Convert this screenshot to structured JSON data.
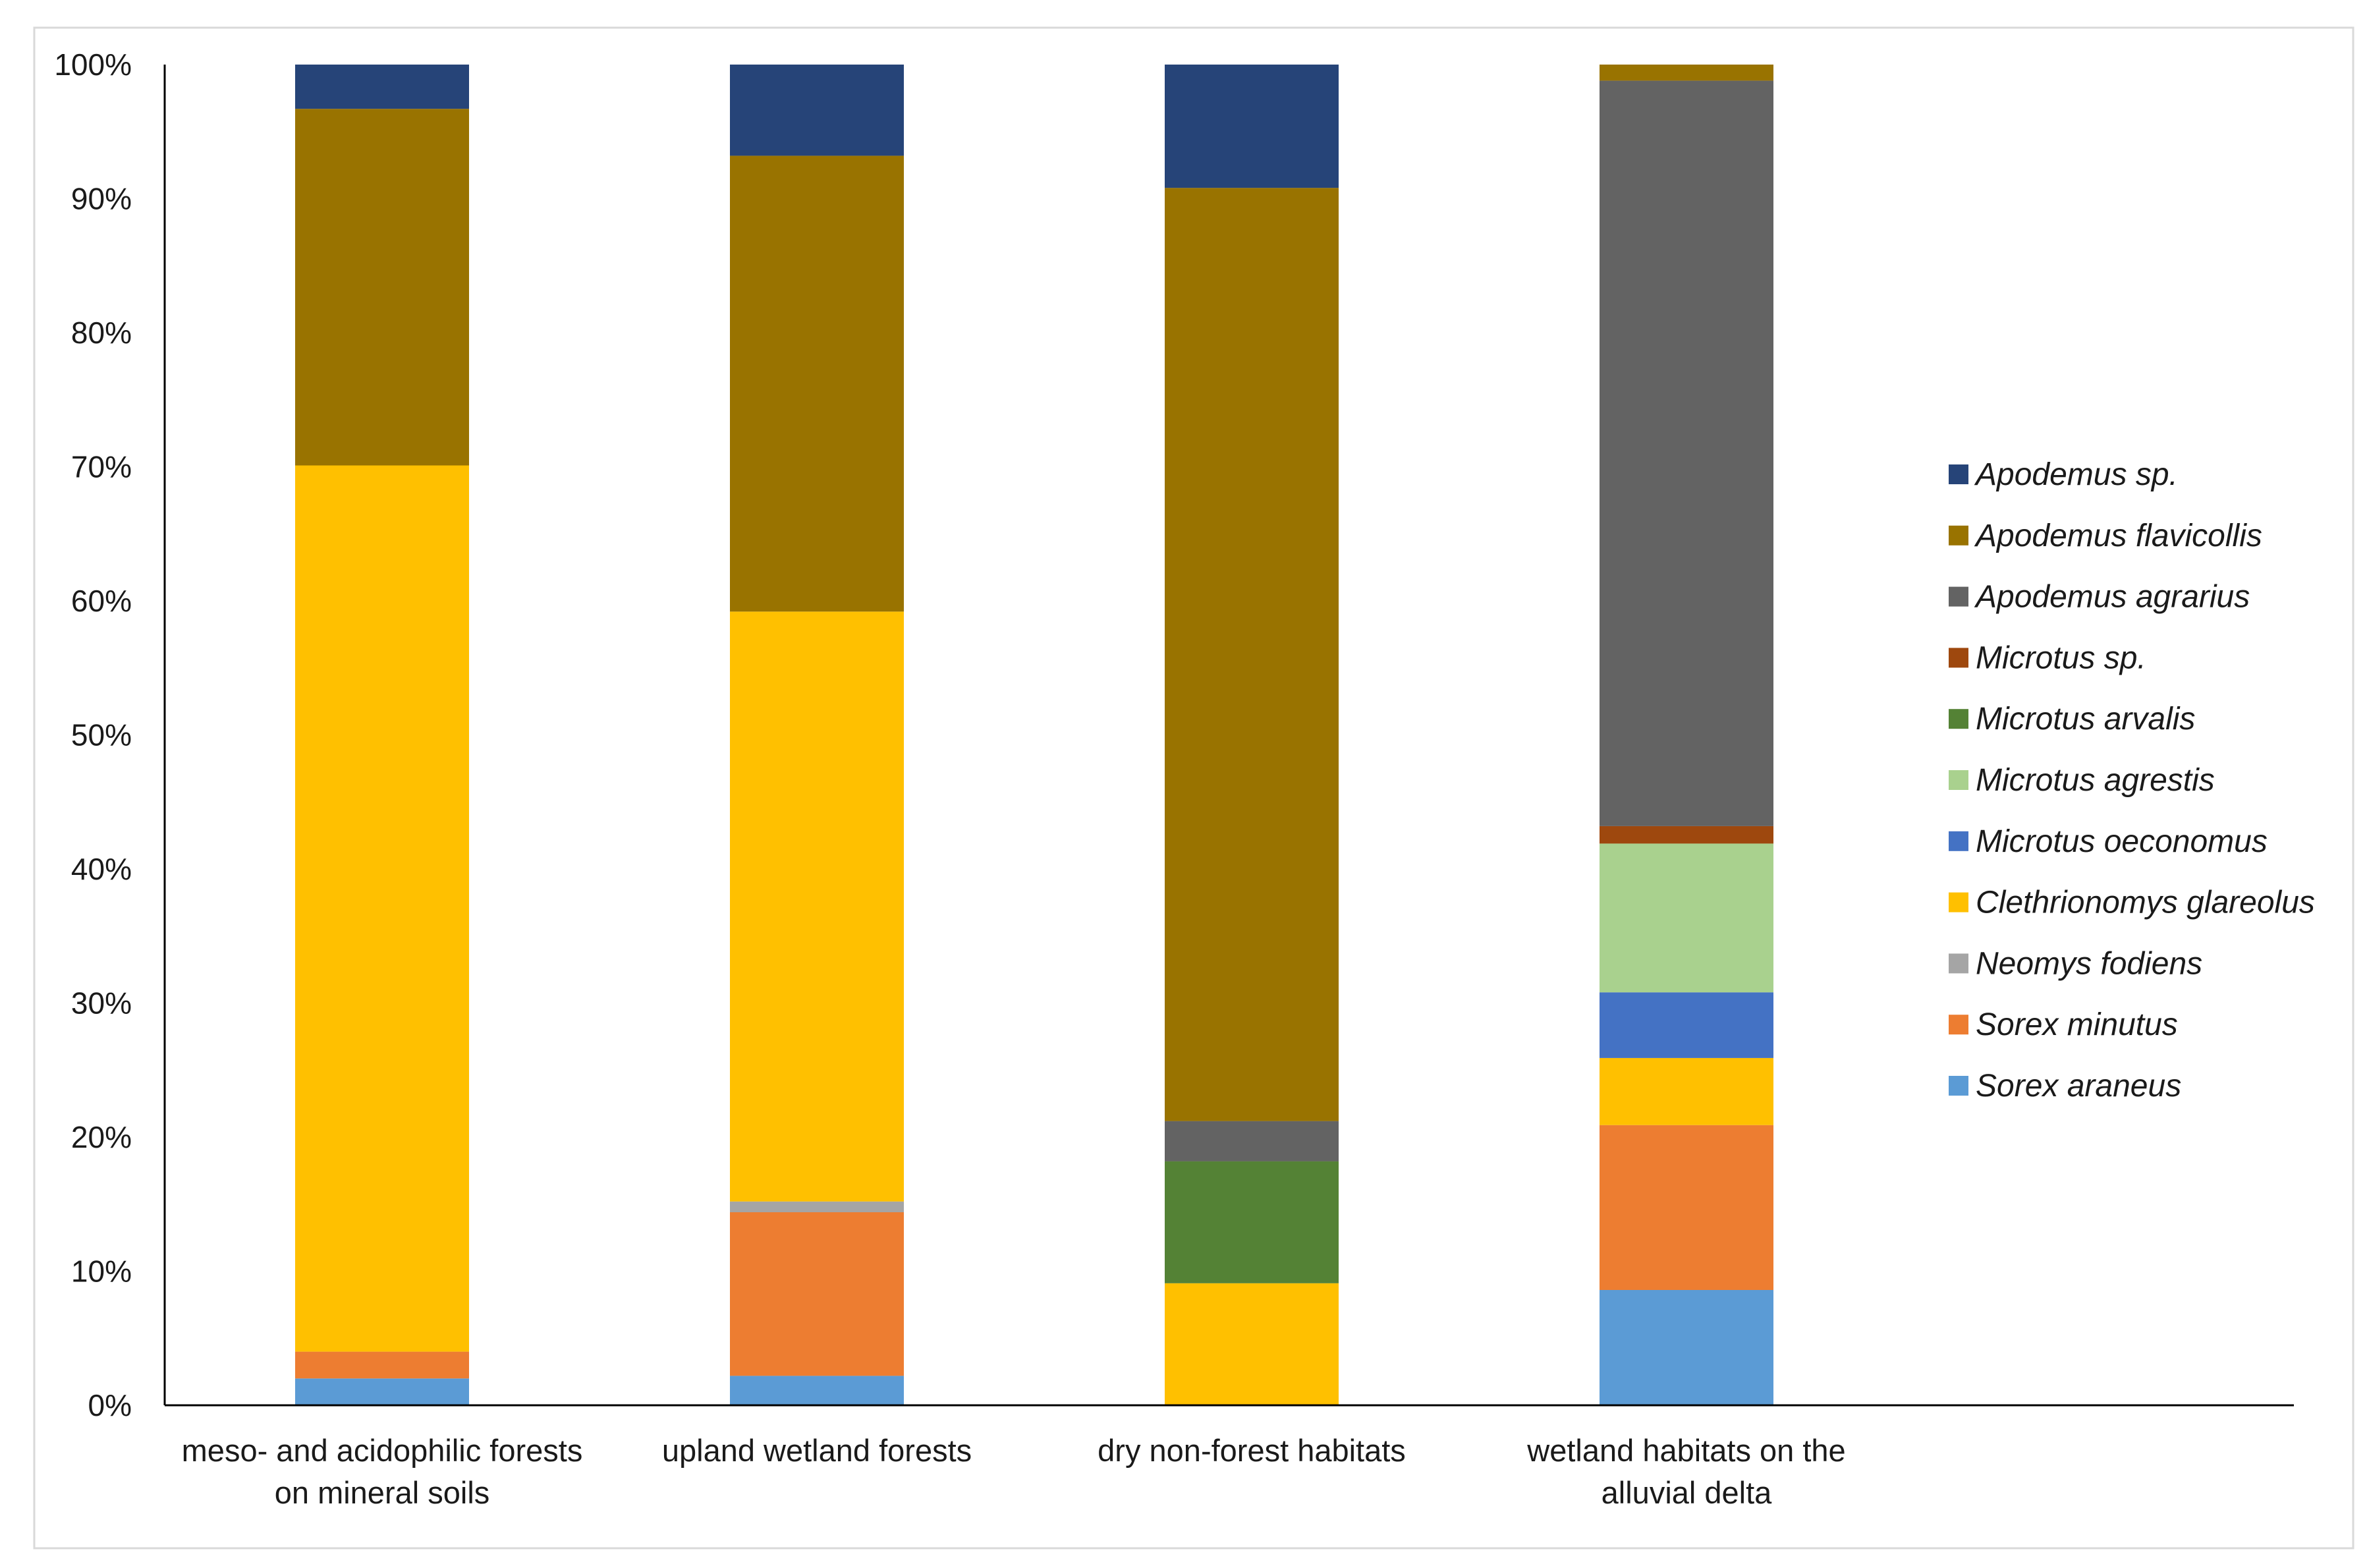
{
  "chart_data": {
    "type": "bar",
    "stacked": true,
    "percent": true,
    "title": "",
    "xlabel": "",
    "ylabel": "",
    "ylim": [
      0,
      100
    ],
    "yticks": [
      "0%",
      "10%",
      "20%",
      "30%",
      "40%",
      "50%",
      "60%",
      "70%",
      "80%",
      "90%",
      "100%"
    ],
    "grid": false,
    "legend_position": "right",
    "categories": [
      [
        "meso- and acidophilic forests",
        "on mineral soils"
      ],
      [
        "upland wetland forests"
      ],
      [
        "dry non-forest habitats"
      ],
      [
        "wetland habitats on the",
        "alluvial delta"
      ]
    ],
    "series": [
      {
        "name": "Sorex araneus",
        "color": "#5B9BD5",
        "values": [
          2.0,
          2.2,
          0,
          8.6
        ]
      },
      {
        "name": "Sorex minutus",
        "color": "#ED7D31",
        "values": [
          2.0,
          12.2,
          0,
          12.3
        ]
      },
      {
        "name": "Neomys fodiens",
        "color": "#A5A5A5",
        "values": [
          0,
          0.8,
          0,
          0
        ]
      },
      {
        "name": "Clethrionomys glareolus",
        "color": "#FFC000",
        "values": [
          66.1,
          44.0,
          9.1,
          5.0
        ]
      },
      {
        "name": "Microtus oeconomus",
        "color": "#4472C4",
        "values": [
          0,
          0,
          0,
          4.9
        ]
      },
      {
        "name": "Microtus agrestis",
        "color": "#A9D18E",
        "values": [
          0,
          0,
          0,
          11.1
        ]
      },
      {
        "name": "Microtus arvalis",
        "color": "#548235",
        "values": [
          0,
          0,
          9.1,
          0
        ]
      },
      {
        "name": "Microtus sp.",
        "color": "#9E480E",
        "values": [
          0,
          0,
          0,
          1.3
        ]
      },
      {
        "name": "Apodemus agrarius",
        "color": "#636363",
        "values": [
          0,
          0,
          3.0,
          55.6
        ]
      },
      {
        "name": "Apodemus flavicollis",
        "color": "#997300",
        "values": [
          26.6,
          34.0,
          69.6,
          1.2
        ]
      },
      {
        "name": "Apodemus sp.",
        "color": "#264478",
        "values": [
          3.3,
          6.8,
          9.2,
          0
        ]
      }
    ]
  }
}
